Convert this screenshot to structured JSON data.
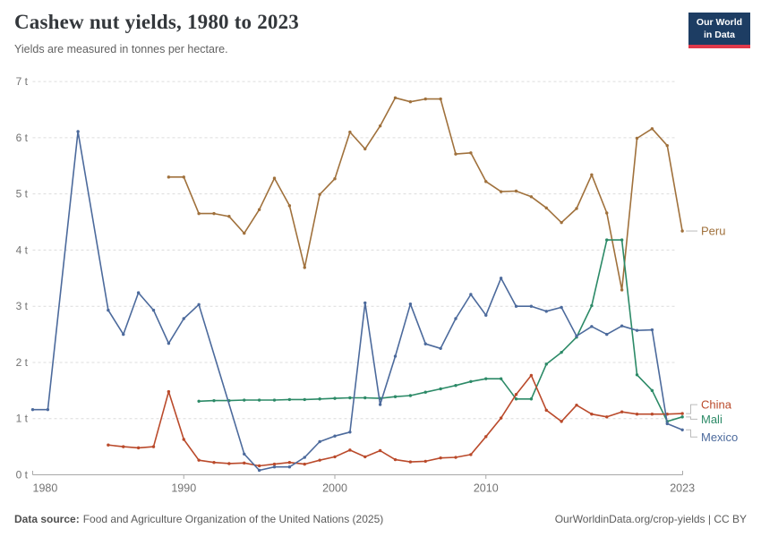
{
  "header": {
    "title": "Cashew nut yields, 1980 to 2023",
    "subtitle": "Yields are measured in tonnes per hectare.",
    "logo": {
      "line1": "Our World",
      "line2": "in Data"
    }
  },
  "footer": {
    "source_label": "Data source:",
    "source_text": "Food and Agriculture Organization of the United Nations (2025)",
    "link_text": "OurWorldinData.org/crop-yields | CC BY"
  },
  "chart_data": {
    "type": "line",
    "title": "Cashew nut yields, 1980 to 2023",
    "subtitle": "Yields are measured in tonnes per hectare.",
    "ylabel": "tonnes per hectare",
    "ylim": [
      0,
      7
    ],
    "xlim": [
      1980,
      2023
    ],
    "grid": "horizontal dashed",
    "legend_position": "right-edge series labels",
    "y_ticks": [
      0,
      1,
      2,
      3,
      4,
      5,
      6,
      7
    ],
    "y_tick_labels": [
      "0 t",
      "1 t",
      "2 t",
      "3 t",
      "4 t",
      "5 t",
      "6 t",
      "7 t"
    ],
    "x_ticks": [
      1980,
      1990,
      2000,
      2010,
      2023
    ],
    "x_tick_labels": [
      "1980",
      "1990",
      "2000",
      "2010",
      "2023"
    ],
    "series": [
      {
        "name": "Peru",
        "color": "#A0713C",
        "start_year": 1989,
        "values": [
          5.3,
          5.3,
          4.65,
          4.65,
          4.6,
          4.3,
          4.72,
          5.28,
          4.79,
          3.69,
          4.99,
          5.27,
          6.1,
          5.8,
          6.21,
          6.71,
          6.64,
          6.69,
          6.69,
          5.71,
          5.73,
          5.22,
          5.04,
          5.05,
          4.95,
          4.75,
          4.49,
          4.74,
          5.34,
          4.66,
          3.29,
          5.99,
          6.16,
          5.86,
          4.34
        ]
      },
      {
        "name": "Mali",
        "color": "#2C8A67",
        "start_year": 1991,
        "values": [
          1.31,
          1.32,
          1.32,
          1.33,
          1.33,
          1.33,
          1.34,
          1.34,
          1.35,
          1.36,
          1.37,
          1.37,
          1.36,
          1.39,
          1.41,
          1.47,
          1.53,
          1.59,
          1.66,
          1.71,
          1.71,
          1.35,
          1.35,
          1.97,
          2.18,
          2.45,
          3.01,
          4.18,
          4.18,
          1.78,
          1.5,
          0.95,
          1.03
        ]
      },
      {
        "name": "China",
        "color": "#BA4A2B",
        "start_year": 1985,
        "values": [
          0.53,
          0.5,
          0.48,
          0.5,
          1.48,
          0.63,
          0.26,
          0.22,
          0.2,
          0.21,
          0.16,
          0.19,
          0.22,
          0.19,
          0.26,
          0.32,
          0.44,
          0.32,
          0.43,
          0.27,
          0.23,
          0.24,
          0.3,
          0.31,
          0.36,
          0.68,
          1.01,
          1.43,
          1.77,
          1.15,
          0.95,
          1.24,
          1.08,
          1.03,
          1.12,
          1.08,
          1.08,
          1.08,
          1.09
        ]
      },
      {
        "name": "Mexico",
        "color": "#4C6A9C",
        "start_year": 1980,
        "values": [
          1.16,
          1.16,
          null,
          6.11,
          null,
          2.93,
          2.5,
          3.24,
          2.93,
          2.34,
          2.78,
          3.03,
          null,
          null,
          0.37,
          0.08,
          0.14,
          0.14,
          0.31,
          0.59,
          0.69,
          0.76,
          3.06,
          1.25,
          2.11,
          3.04,
          2.33,
          2.25,
          2.78,
          3.21,
          2.84,
          3.5,
          3.0,
          3.0,
          2.91,
          2.98,
          2.47,
          2.64,
          2.5,
          2.65,
          2.57,
          2.58,
          0.91,
          0.8
        ]
      }
    ]
  }
}
